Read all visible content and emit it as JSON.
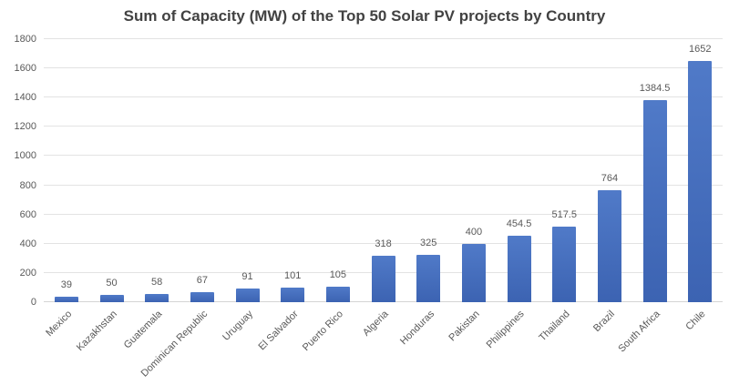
{
  "chart_data": {
    "type": "bar",
    "title": "Sum of Capacity (MW) of the Top 50 Solar PV projects by Country",
    "categories": [
      "Mexico",
      "Kazakhstan",
      "Guatemala",
      "Dominican Republic",
      "Uruguay",
      "El Salvador",
      "Puerto Rico",
      "Algeria",
      "Honduras",
      "Pakistan",
      "Philippines",
      "Thailand",
      "Brazil",
      "South Africa",
      "Chile"
    ],
    "values": [
      39,
      50,
      58,
      67,
      91,
      101,
      105,
      318,
      325,
      400,
      454.5,
      517.5,
      764,
      1384.5,
      1652
    ],
    "value_labels": [
      "39",
      "50",
      "58",
      "67",
      "91",
      "101",
      "105",
      "318",
      "325",
      "400",
      "454.5",
      "517.5",
      "764",
      "1384.5",
      "1652"
    ],
    "xlabel": "",
    "ylabel": "",
    "ylim": [
      0,
      1800
    ],
    "yticks": [
      0,
      200,
      400,
      600,
      800,
      1000,
      1200,
      1400,
      1600,
      1800
    ],
    "grid": true,
    "legend": "none",
    "colors": {
      "bar_gradient_top": "#507ac8",
      "bar_gradient_bottom": "#3c63b2",
      "gridline": "#e3e3e3",
      "axis_line": "#d4d4d4",
      "label_text": "#595959",
      "title_text": "#424242",
      "background": "#ffffff"
    }
  }
}
